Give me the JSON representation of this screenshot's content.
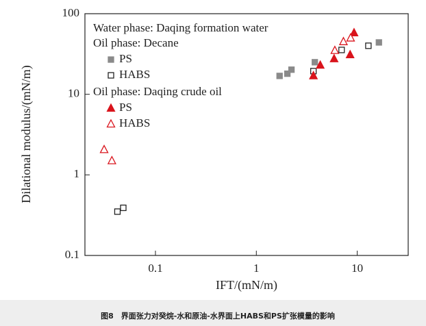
{
  "chart_data": {
    "type": "scatter",
    "x_label": "IFT/(mN/m)",
    "y_label": "Dilational modulus/(mN/m)",
    "log_x": true,
    "log_y": true,
    "xlim": [
      0.02,
      32
    ],
    "ylim": [
      0.1,
      100
    ],
    "xticks": [
      0.1,
      1,
      10
    ],
    "yticks": [
      0.1,
      1,
      10,
      100
    ],
    "note": "Water phase: Daqing formation water",
    "legend_groups": [
      "Oil phase: Decane",
      "Oil phase: Daqing crude oil"
    ],
    "series": [
      {
        "name": "PS",
        "color": "#8a8a8a",
        "marker": "square",
        "filled": true,
        "x": [
          1.7,
          2.03,
          2.23,
          3.8,
          16.4
        ],
        "values": [
          16.9,
          18,
          20.2,
          25,
          44
        ]
      },
      {
        "name": "HABS",
        "color": "#222222",
        "marker": "square",
        "filled": false,
        "x": [
          0.042,
          0.048,
          3.68,
          7.0,
          12.9
        ],
        "values": [
          0.35,
          0.39,
          19.4,
          35.5,
          40
        ]
      },
      {
        "name": "PS",
        "color": "#d9141c",
        "marker": "triangle",
        "filled": true,
        "x": [
          3.68,
          4.3,
          5.9,
          8.5,
          9.3
        ],
        "values": [
          17,
          23,
          27.6,
          31,
          58
        ]
      },
      {
        "name": "HABS",
        "color": "#d9141c",
        "marker": "triangle",
        "filled": false,
        "x": [
          0.031,
          0.037,
          6.0,
          7.3,
          8.6
        ],
        "values": [
          2.06,
          1.5,
          35,
          45,
          50
        ]
      }
    ]
  },
  "caption": "图8　界面张力对癸烷-水和原油-水界面上HABS和PS扩张模量的影响"
}
